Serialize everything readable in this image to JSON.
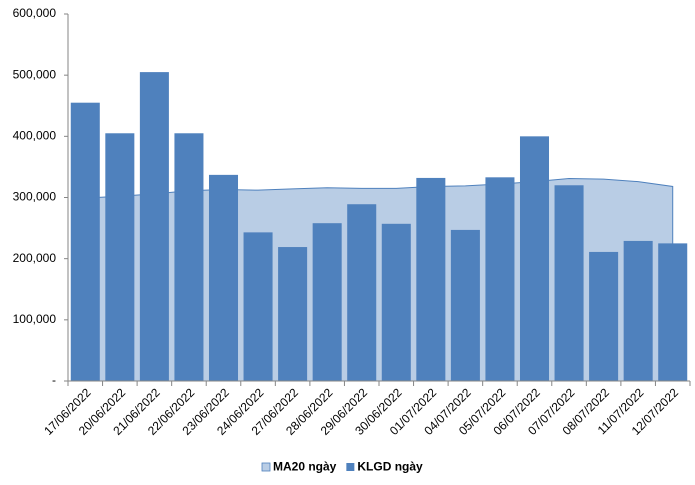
{
  "chart_data": {
    "type": "bar",
    "categories": [
      "17/06/2022",
      "20/06/2022",
      "21/06/2022",
      "22/06/2022",
      "23/06/2022",
      "24/06/2022",
      "27/06/2022",
      "28/06/2022",
      "29/06/2022",
      "30/06/2022",
      "01/07/2022",
      "04/07/2022",
      "05/07/2022",
      "06/07/2022",
      "07/07/2022",
      "08/07/2022",
      "11/07/2022",
      "12/07/2022"
    ],
    "series": [
      {
        "name": "MA20 ngày",
        "type": "area",
        "color": "#b9cde5",
        "values": [
          299000,
          302000,
          306000,
          311000,
          313000,
          312000,
          314000,
          316000,
          315000,
          315000,
          318000,
          319000,
          322000,
          326000,
          331000,
          330000,
          326000,
          318000
        ]
      },
      {
        "name": "KLGD ngày",
        "type": "bar",
        "color": "#4f81bd",
        "values": [
          455000,
          405000,
          505000,
          405000,
          337000,
          243000,
          219000,
          258000,
          289000,
          257000,
          332000,
          247000,
          333000,
          400000,
          320000,
          211000,
          229000,
          225000
        ]
      }
    ],
    "ylim": [
      0,
      600000
    ],
    "yticks": [
      {
        "value": 0,
        "label": "-"
      },
      {
        "value": 100000,
        "label": "100,000"
      },
      {
        "value": 200000,
        "label": "200,000"
      },
      {
        "value": 300000,
        "label": "300,000"
      },
      {
        "value": 400000,
        "label": "400,000"
      },
      {
        "value": 500000,
        "label": "500,000"
      },
      {
        "value": 600000,
        "label": "600,000"
      }
    ],
    "grid": false,
    "legend": "bottom"
  }
}
